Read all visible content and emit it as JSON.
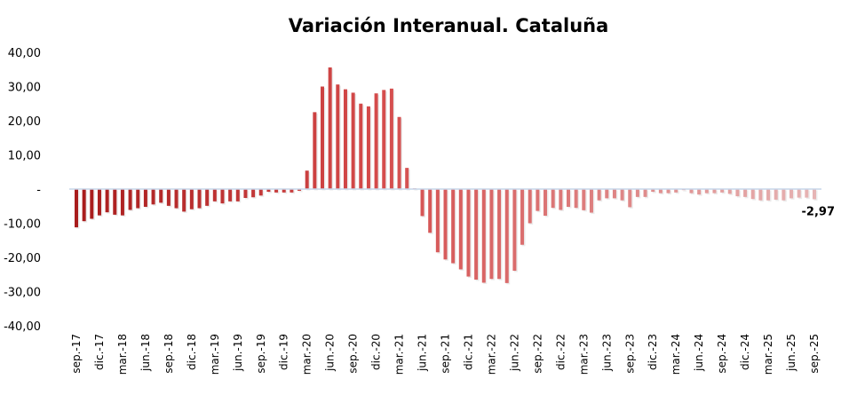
{
  "chart_data": {
    "type": "bar",
    "title": "Variación Interanual. Cataluña",
    "xlabel": "",
    "ylabel": "",
    "ylim": [
      -40,
      40
    ],
    "y_ticks": [
      {
        "value": 40,
        "label": "40,00"
      },
      {
        "value": 30,
        "label": "30,00"
      },
      {
        "value": 20,
        "label": "20,00"
      },
      {
        "value": 10,
        "label": "10,00"
      },
      {
        "value": 0,
        "label": "-"
      },
      {
        "value": -10,
        "label": "-10,00"
      },
      {
        "value": -20,
        "label": "-20,00"
      },
      {
        "value": -30,
        "label": "-30,00"
      },
      {
        "value": -40,
        "label": "-40,00"
      }
    ],
    "x_tick_labels": [
      "sep.-17",
      "dic.-17",
      "mar.-18",
      "jun.-18",
      "sep.-18",
      "dic.-18",
      "mar.-19",
      "jun.-19",
      "sep.-19",
      "dic.-19",
      "mar.-20",
      "jun.-20",
      "sep.-20",
      "dic.-20",
      "mar.-21",
      "jun.-21",
      "sep.-21",
      "dic.-21",
      "mar.-22",
      "jun.-22",
      "sep.-22",
      "dic.-22",
      "mar.-23",
      "jun.-23",
      "sep.-23",
      "dic.-23",
      "mar.-24",
      "jun.-24",
      "sep.-24",
      "dic.-24",
      "mar.-25",
      "jun.-25",
      "sep.-25"
    ],
    "x_tick_every_months": 3,
    "grid": false,
    "legend": "none",
    "start_month": "sep.-17",
    "end_month": "sep.-25",
    "values": [
      -11.2,
      -9.4,
      -8.7,
      -7.7,
      -6.8,
      -7.5,
      -7.7,
      -6.1,
      -5.6,
      -5.2,
      -4.5,
      -4.0,
      -4.9,
      -5.6,
      -6.6,
      -5.9,
      -5.6,
      -4.9,
      -3.6,
      -4.2,
      -3.6,
      -3.6,
      -2.6,
      -2.4,
      -1.9,
      -0.8,
      -1.0,
      -1.0,
      -1.0,
      -0.5,
      5.4,
      22.5,
      30.0,
      35.6,
      30.6,
      29.2,
      28.2,
      25.0,
      24.2,
      28.0,
      29.0,
      29.4,
      21.1,
      6.2,
      0.2,
      -7.9,
      -12.8,
      -18.5,
      -20.6,
      -21.7,
      -23.5,
      -25.6,
      -26.5,
      -27.4,
      -26.3,
      -26.3,
      -27.5,
      -23.9,
      -16.3,
      -10.0,
      -6.4,
      -7.8,
      -5.5,
      -6.1,
      -5.2,
      -5.5,
      -6.2,
      -6.9,
      -3.3,
      -2.7,
      -2.7,
      -3.3,
      -5.3,
      -2.3,
      -2.3,
      -0.8,
      -1.2,
      -1.2,
      -1.0,
      -0.3,
      -1.2,
      -1.6,
      -1.2,
      -1.2,
      -1.0,
      -1.4,
      -2.1,
      -2.3,
      -2.9,
      -3.3,
      -3.3,
      -3.1,
      -3.3,
      -2.7,
      -2.5,
      -2.5,
      -2.97
    ],
    "data_labels": [
      {
        "index": 96,
        "label": "-2,97"
      }
    ],
    "colors": {
      "start": "#a81c1c",
      "mid": "#d44a4a",
      "end": "#e6b4b4",
      "zero_line": "#c5d6ea"
    }
  }
}
